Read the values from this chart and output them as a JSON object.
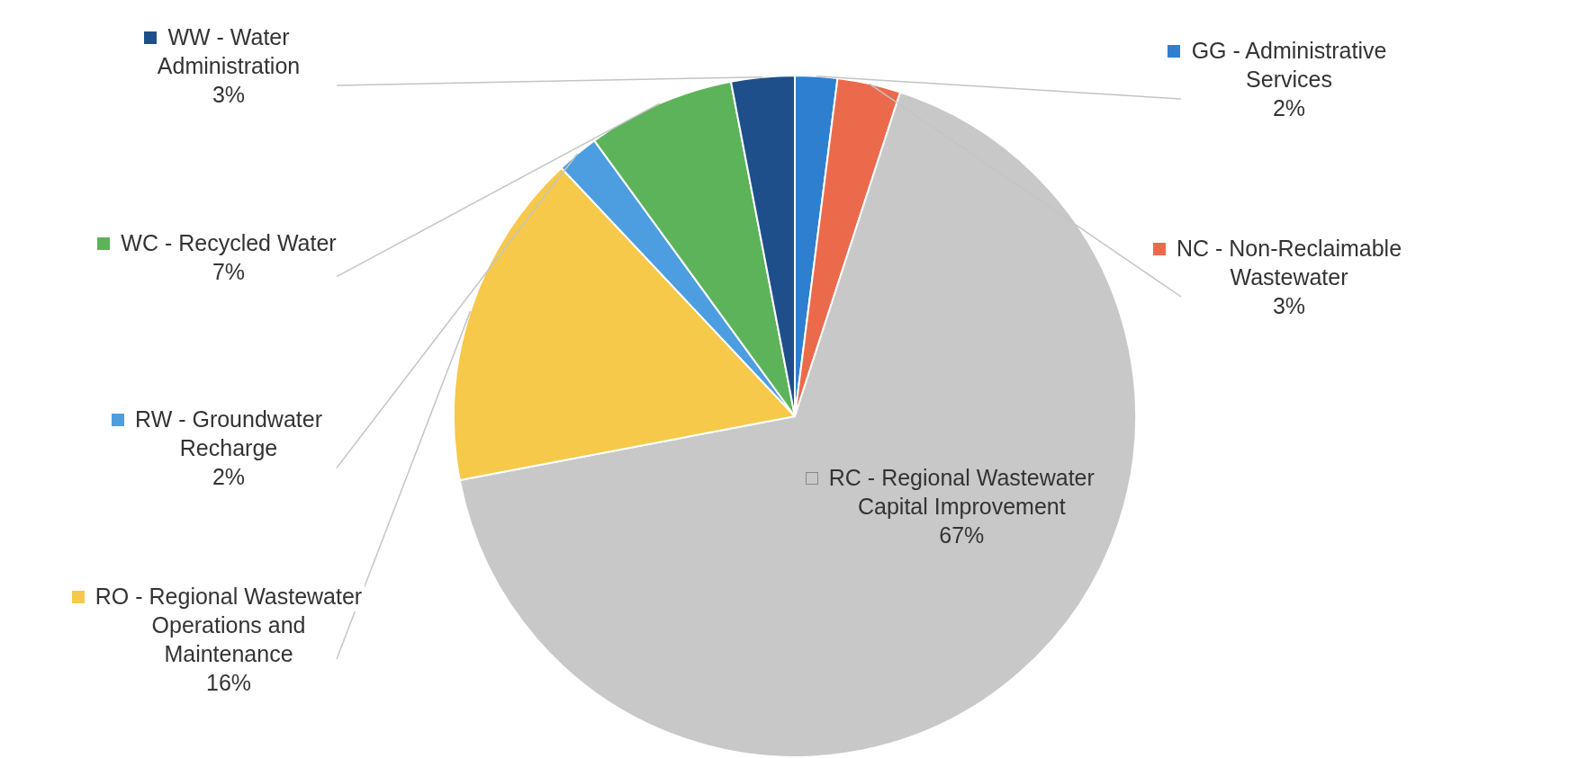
{
  "chart_data": {
    "type": "pie",
    "categories": [
      "GG - Administrative Services",
      "NC - Non-Reclaimable Wastewater",
      "RC - Regional Wastewater Capital Improvement",
      "RO - Regional Wastewater Operations and Maintenance",
      "RW - Groundwater Recharge",
      "WC - Recycled Water",
      "WW - Water Administration"
    ],
    "values": [
      2,
      3,
      67,
      16,
      2,
      7,
      3
    ],
    "value_labels": [
      "2%",
      "3%",
      "67%",
      "16%",
      "2%",
      "7%",
      "3%"
    ],
    "colors": [
      "#2f7fd0",
      "#ec6a4c",
      "#c8c8c8",
      "#f7c94a",
      "#4c9ee0",
      "#5db35a",
      "#1f4f8a"
    ],
    "legend": "left"
  }
}
